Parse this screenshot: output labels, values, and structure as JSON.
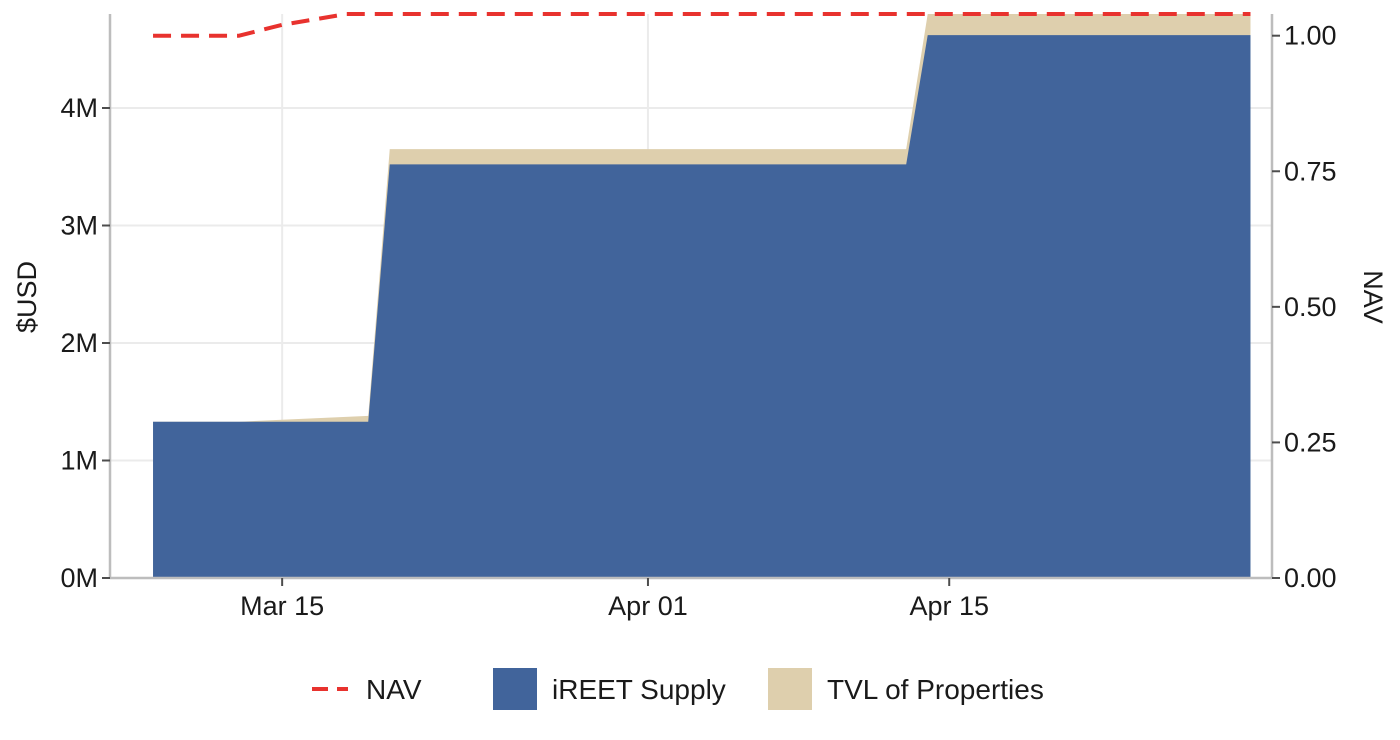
{
  "chart_data": {
    "type": "area",
    "title": "",
    "ylabel": "$USD",
    "y2label": "NAV",
    "x_ticks": [
      "Mar 15",
      "Apr 01",
      "Apr 15"
    ],
    "y_ticks": [
      "0M",
      "1M",
      "2M",
      "3M",
      "4M"
    ],
    "y_tick_values": [
      0,
      1000000,
      2000000,
      3000000,
      4000000
    ],
    "y2_ticks": [
      "0.00",
      "0.25",
      "0.50",
      "0.75",
      "1.00"
    ],
    "y2_tick_values": [
      0,
      0.25,
      0.5,
      0.75,
      1.0
    ],
    "x_tick_dates": [
      "2024-03-15",
      "2024-04-01",
      "2024-04-15"
    ],
    "xlim": [
      "2024-03-07",
      "2024-04-30"
    ],
    "ylim": [
      0,
      4800000
    ],
    "y2lim": [
      0,
      1.04
    ],
    "grid": true,
    "legend_position": "bottom",
    "colors": {
      "supply": "#41649b",
      "tvl": "#decfad",
      "nav": "#e8322e"
    },
    "series": [
      {
        "name": "iREET Supply",
        "kind": "area",
        "x": [
          "2024-03-09",
          "2024-03-19",
          "2024-03-20",
          "2024-04-13",
          "2024-04-14",
          "2024-04-29"
        ],
        "values": [
          1330000,
          1330000,
          3520000,
          3520000,
          4620000,
          4620000
        ]
      },
      {
        "name": "TVL of Properties",
        "kind": "area-stacked-top",
        "x": [
          "2024-03-09",
          "2024-03-13",
          "2024-03-19",
          "2024-03-20",
          "2024-04-13",
          "2024-04-14",
          "2024-04-29"
        ],
        "values": [
          1330000,
          1330000,
          1380000,
          3650000,
          3650000,
          4800000,
          4800000
        ]
      },
      {
        "name": "NAV",
        "kind": "line-dashed",
        "axis": "right",
        "x": [
          "2024-03-09",
          "2024-03-13",
          "2024-03-15",
          "2024-03-18",
          "2024-04-29"
        ],
        "values": [
          1.0,
          1.0,
          1.02,
          1.04,
          1.04
        ]
      }
    ]
  }
}
